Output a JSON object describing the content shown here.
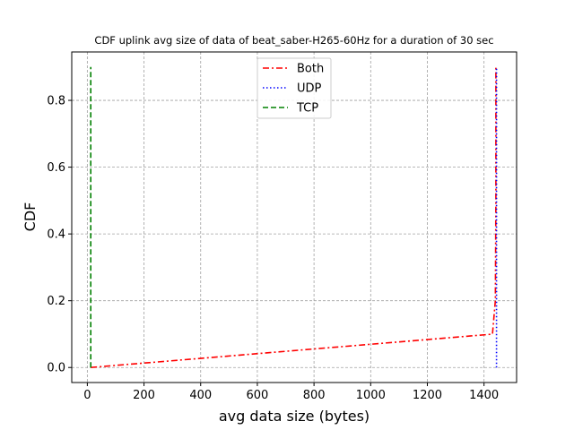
{
  "chart_data": {
    "type": "line",
    "title": "CDF uplink avg size of data of beat_saber-H265-60Hz for a duration of 30 sec",
    "xlabel": "avg data size (bytes)",
    "ylabel": "CDF",
    "xlim": [
      -55,
      1515
    ],
    "ylim": [
      -0.045,
      0.945
    ],
    "xticks": [
      0,
      200,
      400,
      600,
      800,
      1000,
      1200,
      1400
    ],
    "yticks": [
      0.0,
      0.2,
      0.4,
      0.6,
      0.8
    ],
    "ytick_labels": [
      "0.0",
      "0.2",
      "0.4",
      "0.6",
      "0.8"
    ],
    "grid": true,
    "legend_position": "top-center",
    "series": [
      {
        "name": "Both",
        "color": "#ff0000",
        "style": "dashdot",
        "x": [
          12,
          1430,
          1440,
          1442,
          1442
        ],
        "y": [
          0.0,
          0.1,
          0.2,
          0.5,
          0.9
        ]
      },
      {
        "name": "UDP",
        "color": "#0000ff",
        "style": "dotted",
        "x": [
          1444,
          1444
        ],
        "y": [
          0.0,
          0.9
        ]
      },
      {
        "name": "TCP",
        "color": "#008000",
        "style": "dashed",
        "x": [
          12,
          12
        ],
        "y": [
          0.0,
          0.9
        ]
      }
    ]
  }
}
